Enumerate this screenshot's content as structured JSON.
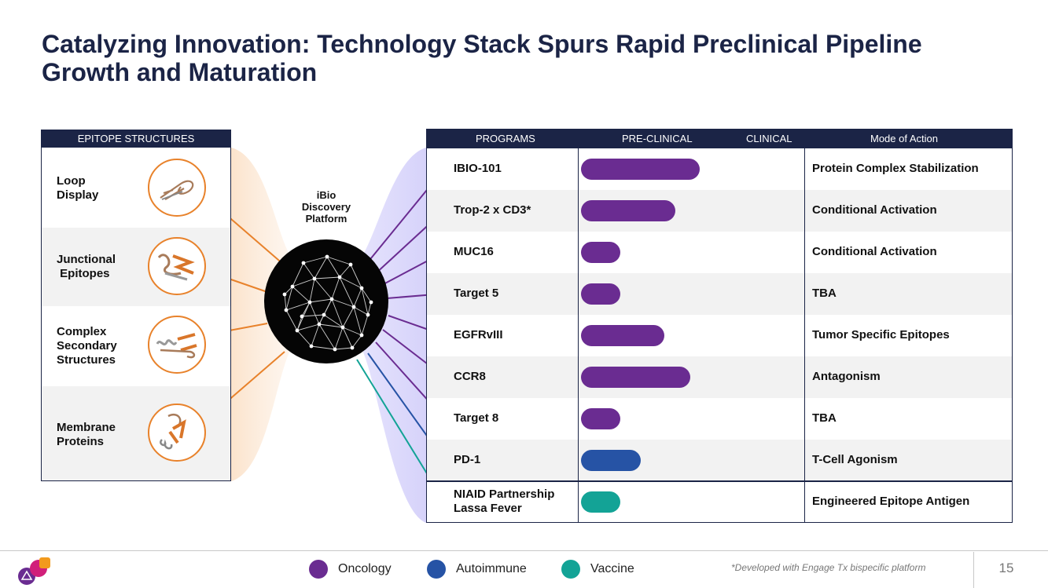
{
  "title": "Catalyzing Innovation: Technology Stack Spurs Rapid Preclinical Pipeline Growth and Maturation",
  "colors": {
    "navy": "#1b2446",
    "oncology": "#6a2c91",
    "autoimmune": "#2653a5",
    "vaccine": "#13a396",
    "orange": "#e8822b"
  },
  "epitopes": {
    "header": "EPITOPE STRUCTURES",
    "items": [
      {
        "label": "Loop\nDisplay",
        "icon": "loop-protein-icon"
      },
      {
        "label": "Junctional\n Epitopes",
        "icon": "junctional-protein-icon"
      },
      {
        "label": "Complex\nSecondary\nStructures",
        "icon": "complex-protein-icon"
      },
      {
        "label": "Membrane\nProteins",
        "icon": "membrane-protein-icon"
      }
    ]
  },
  "platform": {
    "label": "iBio Discovery Platform",
    "icon": "network-sphere-icon"
  },
  "programs": {
    "headers": {
      "programs": "PROGRAMS",
      "preclinical": "PRE-CLINICAL",
      "clinical": "CLINICAL",
      "mode": "Mode of Action"
    },
    "rows": [
      {
        "name": "IBIO-101",
        "mode": "Protein Complex Stabilization",
        "progress": 0.52,
        "category": "oncology"
      },
      {
        "name": "Trop-2 x CD3*",
        "mode": "Conditional Activation",
        "progress": 0.41,
        "category": "oncology"
      },
      {
        "name": "MUC16",
        "mode": "Conditional Activation",
        "progress": 0.16,
        "category": "oncology"
      },
      {
        "name": "Target 5",
        "mode": "TBA",
        "progress": 0.16,
        "category": "oncology"
      },
      {
        "name": "EGFRvIII",
        "mode": "Tumor Specific Epitopes",
        "progress": 0.36,
        "category": "oncology"
      },
      {
        "name": "CCR8",
        "mode": "Antagonism",
        "progress": 0.48,
        "category": "oncology"
      },
      {
        "name": "Target 8",
        "mode": "TBA",
        "progress": 0.16,
        "category": "oncology"
      },
      {
        "name": "PD-1",
        "mode": "T-Cell Agonism",
        "progress": 0.25,
        "category": "autoimmune"
      },
      {
        "name": "NIAID Partnership\nLassa Fever",
        "mode": "Engineered Epitope Antigen",
        "progress": 0.16,
        "category": "vaccine"
      }
    ]
  },
  "legend": [
    {
      "label": "Oncology",
      "category": "oncology"
    },
    {
      "label": "Autoimmune",
      "category": "autoimmune"
    },
    {
      "label": "Vaccine",
      "category": "vaccine"
    }
  ],
  "footnote": "*Developed with Engage Tx bispecific platform",
  "page_number": "15",
  "logo": "ibio-logo-icon"
}
